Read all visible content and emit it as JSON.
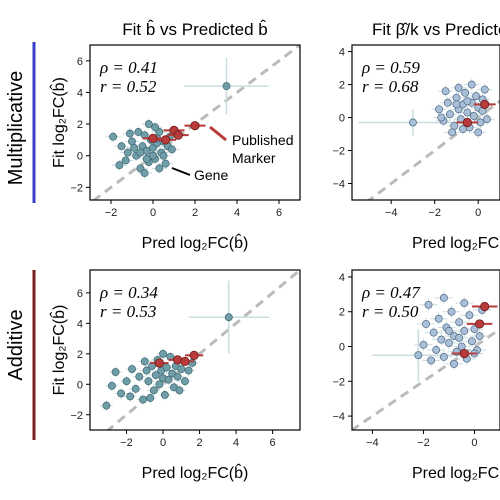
{
  "row_labels": [
    "Multiplicative",
    "Additive"
  ],
  "row_colors": [
    "#3b3fc7",
    "#7a1f1f"
  ],
  "colors": {
    "gene": "#6f9ea8",
    "gene_right": "#a9bfd8",
    "marker": "#b83b3b",
    "diagonal": "#bbbbbb",
    "errorbar": "#c8dde0"
  },
  "annotations": {
    "gene": "Gene",
    "marker_line1": "Published",
    "marker_line2": "Marker"
  },
  "chart_data": [
    {
      "type": "scatter",
      "title": "Fit b̂ vs Predicted b̂",
      "xlabel": "Pred log₂FC(b̂)",
      "ylabel": "Fit log₂FC(b̂)",
      "xlim": [
        -3,
        7
      ],
      "ylim": [
        -2.8,
        7
      ],
      "xticks": [
        -2,
        0,
        2,
        4,
        6
      ],
      "yticks": [
        -2,
        0,
        2,
        4,
        6
      ],
      "stats": {
        "rho": "0.41",
        "r": "0.52"
      },
      "outlier": {
        "x": 3.5,
        "y": 4.4,
        "xerr": 2,
        "yerr": 1.8
      },
      "markers": [
        [
          0.6,
          1.0
        ],
        [
          1.0,
          1.6
        ],
        [
          1.2,
          1.3
        ],
        [
          2.0,
          1.9
        ],
        [
          0.0,
          1.1
        ]
      ],
      "genes": [
        [
          -1.9,
          1.2
        ],
        [
          -1.5,
          0.6
        ],
        [
          -1.2,
          0.2
        ],
        [
          -1.0,
          0.9
        ],
        [
          -0.8,
          0.0
        ],
        [
          -0.6,
          -0.8
        ],
        [
          -0.5,
          0.6
        ],
        [
          -0.4,
          1.3
        ],
        [
          -0.3,
          0.3
        ],
        [
          -0.2,
          -0.4
        ],
        [
          -0.1,
          1.0
        ],
        [
          0.0,
          0.5
        ],
        [
          0.1,
          -0.2
        ],
        [
          0.2,
          0.8
        ],
        [
          0.3,
          1.5
        ],
        [
          0.4,
          0.2
        ],
        [
          0.5,
          0.9
        ],
        [
          0.6,
          -0.5
        ],
        [
          0.7,
          0.6
        ],
        [
          0.8,
          1.2
        ],
        [
          -1.3,
          -0.3
        ],
        [
          -0.9,
          0.5
        ],
        [
          -0.7,
          1.5
        ],
        [
          -1.6,
          -0.6
        ],
        [
          0.1,
          1.8
        ],
        [
          -0.4,
          -1.1
        ],
        [
          0.5,
          0.0
        ],
        [
          -0.2,
          2.0
        ],
        [
          0.9,
          0.4
        ],
        [
          -1.1,
          1.4
        ],
        [
          0.3,
          -0.8
        ],
        [
          -0.6,
          0.2
        ],
        [
          0.2,
          1.1
        ],
        [
          -0.3,
          -0.2
        ],
        [
          0.0,
          0.0
        ]
      ],
      "genes_light": []
    },
    {
      "type": "scatter",
      "title": "Fit β̂/k vs Predicted",
      "xlabel": "Pred log₂FC",
      "ylabel": "",
      "xlim": [
        -5.8,
        1
      ],
      "ylim": [
        -5,
        4.4
      ],
      "xticks": [
        -4,
        -2,
        0
      ],
      "yticks": [
        -4,
        -2,
        0,
        2,
        4
      ],
      "stats": {
        "rho": "0.59",
        "r": "0.68"
      },
      "outlier": {
        "x": -3.0,
        "y": -0.3,
        "xerr": 2.5,
        "yerr": 0.8
      },
      "markers": [
        [
          -0.5,
          -0.3
        ],
        [
          0.3,
          0.8
        ]
      ],
      "genes": [],
      "genes_light": [
        [
          -1.8,
          0.5
        ],
        [
          -1.6,
          -0.2
        ],
        [
          -1.4,
          0.9
        ],
        [
          -1.3,
          0.2
        ],
        [
          -1.1,
          -0.5
        ],
        [
          -1.0,
          1.2
        ],
        [
          -0.9,
          0.5
        ],
        [
          -0.8,
          -0.1
        ],
        [
          -0.7,
          0.8
        ],
        [
          -0.6,
          1.5
        ],
        [
          -0.5,
          0.3
        ],
        [
          -0.4,
          -0.6
        ],
        [
          -0.3,
          0.9
        ],
        [
          -0.2,
          0.1
        ],
        [
          -0.1,
          1.3
        ],
        [
          0.0,
          0.6
        ],
        [
          0.1,
          -0.3
        ],
        [
          0.2,
          0.4
        ],
        [
          0.3,
          1.7
        ],
        [
          0.4,
          -0.1
        ],
        [
          -1.5,
          1.6
        ],
        [
          -1.2,
          -0.9
        ],
        [
          -0.9,
          1.8
        ],
        [
          -0.7,
          -0.7
        ],
        [
          -0.3,
          2.0
        ],
        [
          0.0,
          -0.9
        ],
        [
          0.2,
          1.1
        ],
        [
          -1.7,
          0.0
        ],
        [
          -1.0,
          0.8
        ],
        [
          -0.5,
          1.0
        ]
      ]
    },
    {
      "type": "scatter",
      "title": "",
      "xlabel": "Pred log₂FC(b̂)",
      "ylabel": "Fit log₂FC(b̂)",
      "xlim": [
        -4,
        7.5
      ],
      "ylim": [
        -3,
        7.5
      ],
      "xticks": [
        -2,
        0,
        2,
        4,
        6
      ],
      "yticks": [
        -2,
        0,
        2,
        4,
        6
      ],
      "stats": {
        "rho": "0.34",
        "r": "0.53"
      },
      "outlier": {
        "x": 3.6,
        "y": 4.4,
        "xerr": 2.2,
        "yerr": 2.4
      },
      "markers": [
        [
          -0.2,
          1.4
        ],
        [
          0.8,
          1.6
        ],
        [
          1.2,
          1.5
        ],
        [
          1.7,
          1.9
        ]
      ],
      "genes": [
        [
          -3.1,
          -1.4
        ],
        [
          -2.6,
          0.8
        ],
        [
          -2.3,
          -0.6
        ],
        [
          -2.0,
          0.2
        ],
        [
          -1.7,
          1.0
        ],
        [
          -1.5,
          -0.3
        ],
        [
          -1.3,
          0.5
        ],
        [
          -1.1,
          -1.0
        ],
        [
          -0.9,
          0.9
        ],
        [
          -0.8,
          0.2
        ],
        [
          -0.6,
          1.2
        ],
        [
          -0.5,
          -0.4
        ],
        [
          -0.4,
          0.6
        ],
        [
          -0.3,
          1.6
        ],
        [
          -0.2,
          0.0
        ],
        [
          -0.1,
          0.9
        ],
        [
          0.0,
          0.4
        ],
        [
          0.1,
          -0.7
        ],
        [
          0.2,
          1.1
        ],
        [
          0.3,
          0.3
        ],
        [
          0.4,
          1.8
        ],
        [
          0.5,
          0.7
        ],
        [
          0.6,
          -0.2
        ],
        [
          0.7,
          1.2
        ],
        [
          0.8,
          0.5
        ],
        [
          1.0,
          1.0
        ],
        [
          1.2,
          0.2
        ],
        [
          1.4,
          0.9
        ],
        [
          -1.8,
          -0.8
        ],
        [
          -1.0,
          1.5
        ],
        [
          -0.7,
          -0.9
        ],
        [
          0.0,
          2.0
        ],
        [
          0.9,
          -0.4
        ],
        [
          -2.8,
          -0.1
        ],
        [
          1.6,
          1.4
        ]
      ],
      "genes_light": []
    },
    {
      "type": "scatter",
      "title": "",
      "xlabel": "Pred log₂FC",
      "ylabel": "",
      "xlim": [
        -4.8,
        1
      ],
      "ylim": [
        -4.8,
        4.4
      ],
      "xticks": [
        -4,
        -2,
        0
      ],
      "yticks": [
        -4,
        -2,
        0,
        2,
        4
      ],
      "stats": {
        "rho": "0.47",
        "r": "0.50"
      },
      "outlier": {
        "x": -2.2,
        "y": -0.5,
        "xerr": 1.8,
        "yerr": 1.5
      },
      "markers": [
        [
          -0.4,
          -0.4
        ],
        [
          0.2,
          1.3
        ],
        [
          0.4,
          2.3
        ]
      ],
      "genes": [],
      "genes_light": [
        [
          -2.0,
          0.1
        ],
        [
          -1.8,
          2.4
        ],
        [
          -1.6,
          0.8
        ],
        [
          -1.5,
          -0.2
        ],
        [
          -1.4,
          1.6
        ],
        [
          -1.3,
          0.4
        ],
        [
          -1.2,
          -0.6
        ],
        [
          -1.1,
          1.1
        ],
        [
          -1.0,
          0.2
        ],
        [
          -0.9,
          2.0
        ],
        [
          -0.8,
          0.6
        ],
        [
          -0.7,
          -0.3
        ],
        [
          -0.6,
          1.4
        ],
        [
          -0.5,
          0.0
        ],
        [
          -0.4,
          0.9
        ],
        [
          -0.3,
          -0.7
        ],
        [
          -0.2,
          1.8
        ],
        [
          -0.1,
          0.3
        ],
        [
          0.0,
          1.0
        ],
        [
          0.1,
          -0.2
        ],
        [
          0.2,
          0.6
        ],
        [
          0.3,
          2.1
        ],
        [
          -1.7,
          -0.8
        ],
        [
          -1.2,
          2.8
        ],
        [
          -0.8,
          -1.0
        ],
        [
          -0.4,
          2.5
        ],
        [
          0.0,
          -0.4
        ],
        [
          -1.9,
          1.3
        ],
        [
          -1.0,
          0.9
        ],
        [
          -0.6,
          0.5
        ]
      ]
    }
  ]
}
